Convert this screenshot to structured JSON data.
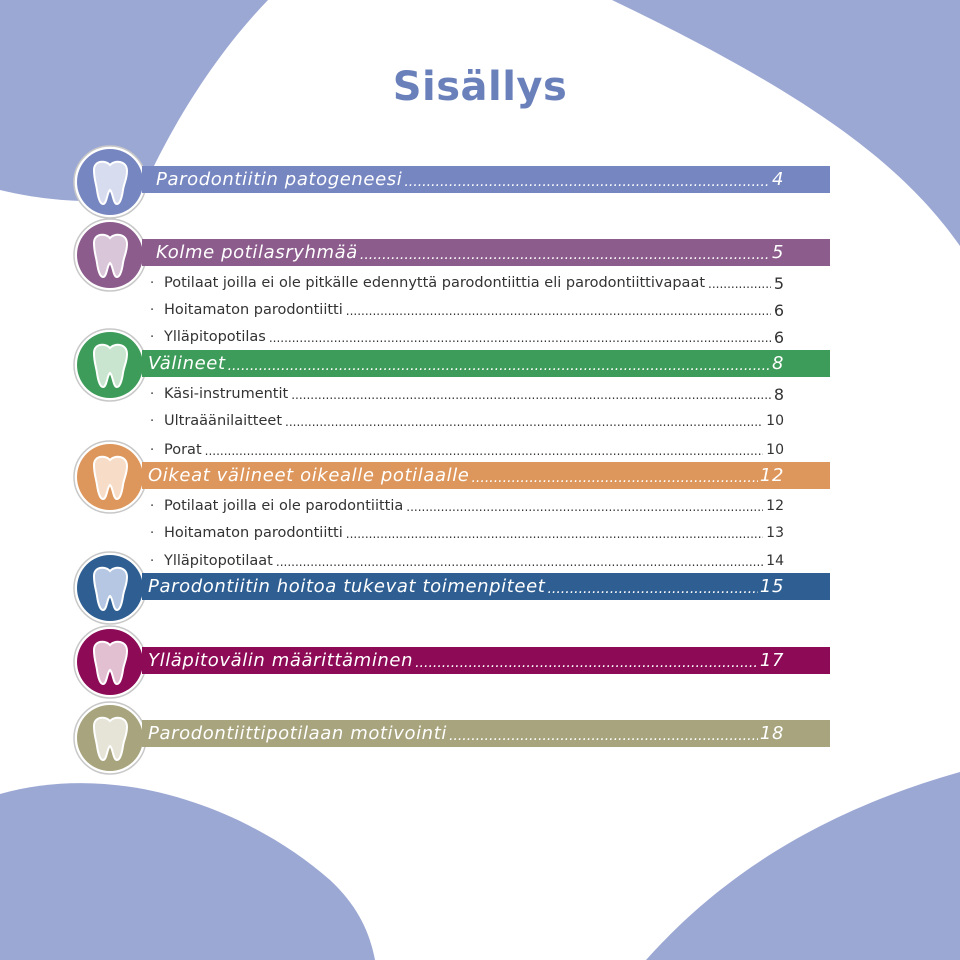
{
  "page": {
    "title": "Sisällys",
    "colors": {
      "background": "#ffffff",
      "corner_shapes": "#9ca8d4",
      "title": "#6a80bb"
    }
  },
  "toc": {
    "sections": [
      {
        "title": "Parodontiitin patogeneesi",
        "page": "4",
        "color": "#7686c0",
        "icon": "tooth-icon",
        "subitems": []
      },
      {
        "title": "Kolme potilasryhmää",
        "page": "5",
        "color": "#8c5c8c",
        "icon": "tooth-icon",
        "subitems": [
          {
            "text": "Potilaat joilla ei ole pitkälle edennyttä parodontiittia eli parodontiittivapaat",
            "page": "5"
          },
          {
            "text": "Hoitamaton parodontiitti",
            "page": "6"
          },
          {
            "text": "Ylläpitopotilas",
            "page": "6"
          }
        ]
      },
      {
        "title": "Välineet",
        "page": "8",
        "color": "#3e9c5a",
        "icon": "tooth-icon",
        "subitems": [
          {
            "text": "Käsi-instrumentit",
            "page": "8"
          },
          {
            "text": "Ultraäänilaitteet",
            "page": "10"
          },
          {
            "text": "Porat",
            "page": "10"
          }
        ]
      },
      {
        "title": "Oikeat välineet oikealle potilaalle",
        "page": "12",
        "color": "#dd965b",
        "icon": "tooth-icon",
        "subitems": [
          {
            "text": "Potilaat joilla ei ole parodontiittia",
            "page": "12"
          },
          {
            "text": "Hoitamaton parodontiitti",
            "page": "13"
          },
          {
            "text": "Ylläpitopotilaat",
            "page": "14"
          }
        ]
      },
      {
        "title": "Parodontiitin hoitoa tukevat toimenpiteet",
        "page": "15",
        "color": "#2f5f92",
        "icon": "tooth-icon",
        "subitems": []
      },
      {
        "title": "Ylläpitovälin määrittäminen",
        "page": "17",
        "color": "#8c0a56",
        "icon": "tooth-icon",
        "subitems": []
      },
      {
        "title": "Parodontiittipotilaan motivointi",
        "page": "18",
        "color": "#a7a47e",
        "icon": "tooth-icon",
        "subitems": []
      }
    ]
  }
}
